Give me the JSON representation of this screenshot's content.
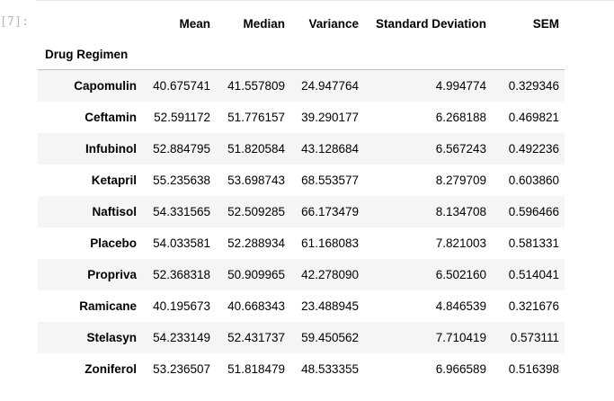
{
  "cell": {
    "prompt": "[7]:"
  },
  "table": {
    "columns": [
      "Mean",
      "Median",
      "Variance",
      "Standard Deviation",
      "SEM"
    ],
    "index_name": "Drug Regimen",
    "rows": [
      {
        "label": "Capomulin",
        "values": [
          "40.675741",
          "41.557809",
          "24.947764",
          "4.994774",
          "0.329346"
        ]
      },
      {
        "label": "Ceftamin",
        "values": [
          "52.591172",
          "51.776157",
          "39.290177",
          "6.268188",
          "0.469821"
        ]
      },
      {
        "label": "Infubinol",
        "values": [
          "52.884795",
          "51.820584",
          "43.128684",
          "6.567243",
          "0.492236"
        ]
      },
      {
        "label": "Ketapril",
        "values": [
          "55.235638",
          "53.698743",
          "68.553577",
          "8.279709",
          "0.603860"
        ]
      },
      {
        "label": "Naftisol",
        "values": [
          "54.331565",
          "52.509285",
          "66.173479",
          "8.134708",
          "0.596466"
        ]
      },
      {
        "label": "Placebo",
        "values": [
          "54.033581",
          "52.288934",
          "61.168083",
          "7.821003",
          "0.581331"
        ]
      },
      {
        "label": "Propriva",
        "values": [
          "52.368318",
          "50.909965",
          "42.278090",
          "6.502160",
          "0.514041"
        ]
      },
      {
        "label": "Ramicane",
        "values": [
          "40.195673",
          "40.668343",
          "23.488945",
          "4.846539",
          "0.321676"
        ]
      },
      {
        "label": "Stelasyn",
        "values": [
          "54.233149",
          "52.431737",
          "59.450562",
          "7.710419",
          "0.573111"
        ]
      },
      {
        "label": "Zoniferol",
        "values": [
          "53.236507",
          "51.818479",
          "48.533355",
          "6.966589",
          "0.516398"
        ]
      }
    ]
  }
}
